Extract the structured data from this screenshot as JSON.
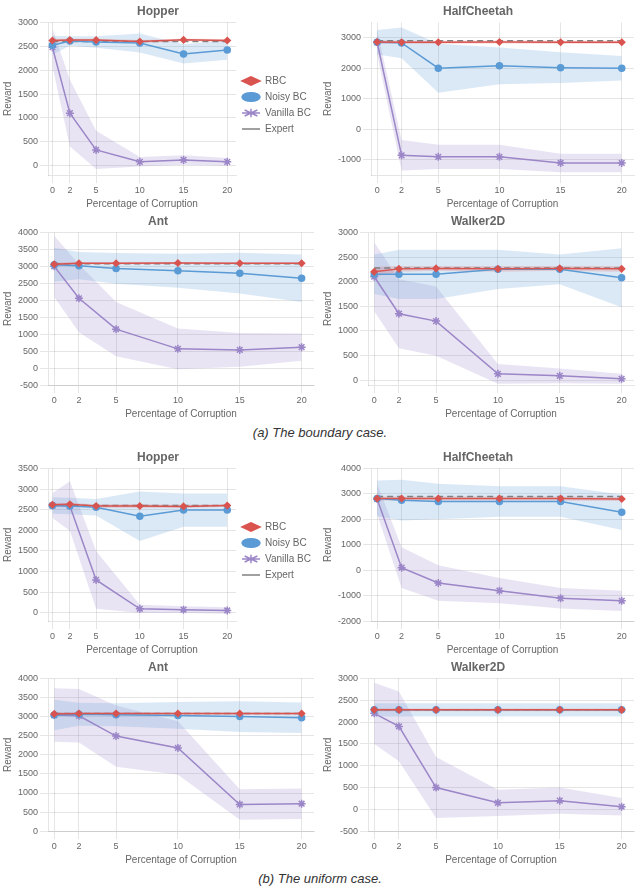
{
  "chart_data": [
    {
      "type": "line",
      "title": "Hopper",
      "xlabel": "Percentage of Corruption",
      "ylabel": "Reward",
      "x": [
        0,
        2,
        5,
        10,
        15,
        20
      ],
      "xlim": [
        -0.5,
        21
      ],
      "xticks": [
        0,
        2,
        5,
        10,
        15,
        20
      ],
      "ylim": [
        -200,
        3000
      ],
      "yticks": [
        0,
        500,
        1000,
        1500,
        2000,
        2500,
        3000
      ],
      "grid": true,
      "legend": "right",
      "series": [
        {
          "name": "Expert",
          "color": "#808080",
          "line_style": "dashed",
          "values": [
            2600,
            2600,
            2600,
            2600,
            2600,
            2600
          ]
        },
        {
          "name": "RBC",
          "color": "#d9534f",
          "marker": "diamond",
          "line_style": "solid",
          "values": [
            2620,
            2630,
            2630,
            2600,
            2635,
            2620
          ],
          "std": [
            40,
            30,
            30,
            30,
            25,
            30
          ]
        },
        {
          "name": "Noisy BC",
          "color": "#5b9bd5",
          "marker": "circle",
          "line_style": "solid",
          "values": [
            2520,
            2610,
            2590,
            2570,
            2340,
            2420
          ],
          "std": [
            200,
            100,
            120,
            200,
            200,
            200
          ]
        },
        {
          "name": "Vanilla BC",
          "color": "#9b86c8",
          "marker": "star",
          "line_style": "solid",
          "values": [
            2480,
            1100,
            330,
            80,
            120,
            80
          ],
          "std": [
            400,
            700,
            400,
            100,
            100,
            80
          ]
        }
      ]
    },
    {
      "type": "line",
      "title": "HalfCheetah",
      "xlabel": "Percentage of Corruption",
      "ylabel": "Reward",
      "x": [
        0,
        2,
        5,
        10,
        15,
        20
      ],
      "xlim": [
        -0.5,
        21
      ],
      "xticks": [
        0,
        2,
        5,
        10,
        15,
        20
      ],
      "ylim": [
        -1500,
        3500
      ],
      "yticks": [
        -1000,
        0,
        1000,
        2000,
        3000
      ],
      "grid": true,
      "legend": false,
      "series": [
        {
          "name": "Expert",
          "color": "#808080",
          "line_style": "dashed",
          "values": [
            2900,
            2900,
            2900,
            2900,
            2900,
            2900
          ]
        },
        {
          "name": "RBC",
          "color": "#d9534f",
          "marker": "diamond",
          "line_style": "solid",
          "values": [
            2860,
            2850,
            2850,
            2860,
            2850,
            2850
          ],
          "std": [
            60,
            50,
            50,
            50,
            50,
            50
          ]
        },
        {
          "name": "Noisy BC",
          "color": "#5b9bd5",
          "marker": "circle",
          "line_style": "solid",
          "values": [
            2850,
            2830,
            2000,
            2080,
            2020,
            2000
          ],
          "std": [
            400,
            500,
            800,
            600,
            500,
            400
          ]
        },
        {
          "name": "Vanilla BC",
          "color": "#9b86c8",
          "marker": "star",
          "line_style": "solid",
          "values": [
            2850,
            -850,
            -900,
            -900,
            -1100,
            -1100
          ],
          "std": [
            400,
            500,
            400,
            400,
            300,
            300
          ]
        }
      ]
    },
    {
      "type": "line",
      "title": "Ant",
      "xlabel": "Percentage of Corruption",
      "ylabel": "Reward",
      "x": [
        0,
        2,
        5,
        10,
        15,
        20
      ],
      "xlim": [
        -0.5,
        21
      ],
      "xticks": [
        0,
        2,
        5,
        10,
        15,
        20
      ],
      "ylim": [
        -500,
        4000
      ],
      "yticks": [
        -500,
        0,
        500,
        1000,
        1500,
        2000,
        2500,
        3000,
        3500,
        4000
      ],
      "grid": true,
      "legend": false,
      "series": [
        {
          "name": "Expert",
          "color": "#808080",
          "line_style": "dashed",
          "values": [
            3080,
            3080,
            3080,
            3080,
            3080,
            3080
          ]
        },
        {
          "name": "RBC",
          "color": "#d9534f",
          "marker": "diamond",
          "line_style": "solid",
          "values": [
            3060,
            3090,
            3090,
            3100,
            3090,
            3090
          ],
          "std": [
            50,
            30,
            30,
            30,
            30,
            30
          ]
        },
        {
          "name": "Noisy BC",
          "color": "#5b9bd5",
          "marker": "circle",
          "line_style": "solid",
          "values": [
            3050,
            3020,
            2940,
            2870,
            2800,
            2650
          ],
          "std": [
            500,
            400,
            450,
            500,
            600,
            700
          ]
        },
        {
          "name": "Vanilla BC",
          "color": "#9b86c8",
          "marker": "star",
          "line_style": "solid",
          "values": [
            3000,
            2060,
            1150,
            570,
            540,
            620
          ],
          "std": [
            900,
            1000,
            800,
            600,
            500,
            400
          ]
        }
      ]
    },
    {
      "type": "line",
      "title": "Walker2D",
      "xlabel": "Percentage of Corruption",
      "ylabel": "Reward",
      "x": [
        0,
        2,
        5,
        10,
        15,
        20
      ],
      "xlim": [
        -0.5,
        21
      ],
      "xticks": [
        0,
        2,
        5,
        10,
        15,
        20
      ],
      "ylim": [
        -100,
        3000
      ],
      "yticks": [
        0,
        500,
        1000,
        1500,
        2000,
        2500,
        3000
      ],
      "grid": true,
      "legend": false,
      "annotations": [
        "(a) The boundary case."
      ],
      "series": [
        {
          "name": "Expert",
          "color": "#808080",
          "line_style": "dashed",
          "values": [
            2280,
            2280,
            2280,
            2280,
            2280,
            2280
          ]
        },
        {
          "name": "RBC",
          "color": "#d9534f",
          "marker": "diamond",
          "line_style": "solid",
          "values": [
            2200,
            2260,
            2270,
            2260,
            2270,
            2260
          ],
          "std": [
            100,
            60,
            50,
            60,
            50,
            60
          ]
        },
        {
          "name": "Noisy BC",
          "color": "#5b9bd5",
          "marker": "circle",
          "line_style": "solid",
          "values": [
            2150,
            2150,
            2150,
            2250,
            2250,
            2080
          ],
          "std": [
            400,
            500,
            500,
            400,
            300,
            600
          ]
        },
        {
          "name": "Vanilla BC",
          "color": "#9b86c8",
          "marker": "star",
          "line_style": "solid",
          "values": [
            2100,
            1350,
            1200,
            130,
            90,
            30
          ],
          "std": [
            700,
            700,
            700,
            200,
            150,
            100
          ]
        }
      ]
    },
    {
      "type": "line",
      "title": "Hopper",
      "xlabel": "Percentage of Corruption",
      "ylabel": "Reward",
      "x": [
        0,
        2,
        5,
        10,
        15,
        20
      ],
      "xlim": [
        -0.5,
        21
      ],
      "xticks": [
        0,
        2,
        5,
        10,
        15,
        20
      ],
      "ylim": [
        -200,
        3500
      ],
      "yticks": [
        0,
        500,
        1000,
        1500,
        2000,
        2500,
        3000,
        3500
      ],
      "grid": true,
      "legend": "right",
      "series": [
        {
          "name": "Expert",
          "color": "#808080",
          "line_style": "dashed",
          "values": [
            2600,
            2600,
            2600,
            2600,
            2600,
            2600
          ]
        },
        {
          "name": "RBC",
          "color": "#d9534f",
          "marker": "diamond",
          "line_style": "solid",
          "values": [
            2620,
            2630,
            2590,
            2590,
            2580,
            2600
          ],
          "std": [
            40,
            30,
            40,
            40,
            40,
            30
          ]
        },
        {
          "name": "Noisy BC",
          "color": "#5b9bd5",
          "marker": "circle",
          "line_style": "solid",
          "values": [
            2600,
            2590,
            2560,
            2340,
            2490,
            2490
          ],
          "std": [
            200,
            200,
            200,
            600,
            400,
            400
          ]
        },
        {
          "name": "Vanilla BC",
          "color": "#9b86c8",
          "marker": "star",
          "line_style": "solid",
          "values": [
            2600,
            2590,
            800,
            100,
            80,
            60
          ],
          "std": [
            300,
            600,
            700,
            100,
            80,
            80
          ]
        }
      ]
    },
    {
      "type": "line",
      "title": "HalfCheetah",
      "xlabel": "Percentage of Corruption",
      "ylabel": "Reward",
      "x": [
        0,
        2,
        5,
        10,
        15,
        20
      ],
      "xlim": [
        -0.5,
        21
      ],
      "xticks": [
        0,
        2,
        5,
        10,
        15,
        20
      ],
      "ylim": [
        -2000,
        4000
      ],
      "yticks": [
        -2000,
        -1000,
        0,
        1000,
        2000,
        3000,
        4000
      ],
      "grid": true,
      "legend": false,
      "series": [
        {
          "name": "Expert",
          "color": "#808080",
          "line_style": "dashed",
          "values": [
            2900,
            2900,
            2900,
            2900,
            2900,
            2900
          ]
        },
        {
          "name": "RBC",
          "color": "#d9534f",
          "marker": "diamond",
          "line_style": "solid",
          "values": [
            2820,
            2820,
            2820,
            2820,
            2820,
            2800
          ],
          "std": [
            80,
            80,
            80,
            80,
            80,
            80
          ]
        },
        {
          "name": "Noisy BC",
          "color": "#5b9bd5",
          "marker": "circle",
          "line_style": "solid",
          "values": [
            2820,
            2750,
            2700,
            2700,
            2700,
            2280
          ],
          "std": [
            700,
            800,
            700,
            600,
            600,
            700
          ]
        },
        {
          "name": "Vanilla BC",
          "color": "#9b86c8",
          "marker": "star",
          "line_style": "solid",
          "values": [
            2800,
            100,
            -500,
            -800,
            -1100,
            -1200
          ],
          "std": [
            600,
            800,
            700,
            500,
            400,
            400
          ]
        }
      ]
    },
    {
      "type": "line",
      "title": "Ant",
      "xlabel": "Percentage of Corruption",
      "ylabel": "Reward",
      "x": [
        0,
        2,
        5,
        10,
        15,
        20
      ],
      "xlim": [
        -0.5,
        21
      ],
      "xticks": [
        0,
        2,
        5,
        10,
        15,
        20
      ],
      "ylim": [
        0,
        4000
      ],
      "yticks": [
        0,
        500,
        1000,
        1500,
        2000,
        2500,
        3000,
        3500,
        4000
      ],
      "grid": true,
      "legend": false,
      "series": [
        {
          "name": "Expert",
          "color": "#808080",
          "line_style": "dashed",
          "values": [
            3080,
            3080,
            3080,
            3080,
            3080,
            3080
          ]
        },
        {
          "name": "RBC",
          "color": "#d9534f",
          "marker": "diamond",
          "line_style": "solid",
          "values": [
            3070,
            3080,
            3080,
            3080,
            3080,
            3080
          ],
          "std": [
            50,
            30,
            30,
            30,
            30,
            30
          ]
        },
        {
          "name": "Noisy BC",
          "color": "#5b9bd5",
          "marker": "circle",
          "line_style": "solid",
          "values": [
            3040,
            3060,
            3050,
            3030,
            3000,
            2970
          ],
          "std": [
            400,
            300,
            300,
            350,
            400,
            400
          ]
        },
        {
          "name": "Vanilla BC",
          "color": "#9b86c8",
          "marker": "star",
          "line_style": "solid",
          "values": [
            3040,
            3020,
            2490,
            2180,
            700,
            720
          ],
          "std": [
            700,
            700,
            800,
            700,
            400,
            400
          ]
        }
      ]
    },
    {
      "type": "line",
      "title": "Walker2D",
      "xlabel": "Percentage of Corruption",
      "ylabel": "Reward",
      "x": [
        0,
        2,
        5,
        10,
        15,
        20
      ],
      "xlim": [
        -0.5,
        21
      ],
      "xticks": [
        0,
        2,
        5,
        10,
        15,
        20
      ],
      "ylim": [
        -500,
        3000
      ],
      "yticks": [
        -500,
        0,
        500,
        1000,
        1500,
        2000,
        2500,
        3000
      ],
      "grid": true,
      "legend": false,
      "annotations": [
        "(b) The uniform case."
      ],
      "series": [
        {
          "name": "Expert",
          "color": "#808080",
          "line_style": "dashed",
          "values": [
            2280,
            2280,
            2280,
            2280,
            2280,
            2280
          ]
        },
        {
          "name": "RBC",
          "color": "#d9534f",
          "marker": "diamond",
          "line_style": "solid",
          "values": [
            2280,
            2280,
            2280,
            2280,
            2280,
            2280
          ],
          "std": [
            30,
            30,
            30,
            30,
            30,
            30
          ]
        },
        {
          "name": "Noisy BC",
          "color": "#5b9bd5",
          "marker": "circle",
          "line_style": "solid",
          "values": [
            2280,
            2280,
            2280,
            2280,
            2280,
            2280
          ],
          "std": [
            150,
            150,
            150,
            150,
            150,
            150
          ]
        },
        {
          "name": "Vanilla BC",
          "color": "#9b86c8",
          "marker": "star",
          "line_style": "solid",
          "values": [
            2200,
            1900,
            500,
            150,
            200,
            60
          ],
          "std": [
            700,
            800,
            700,
            300,
            300,
            200
          ]
        }
      ]
    }
  ]
}
